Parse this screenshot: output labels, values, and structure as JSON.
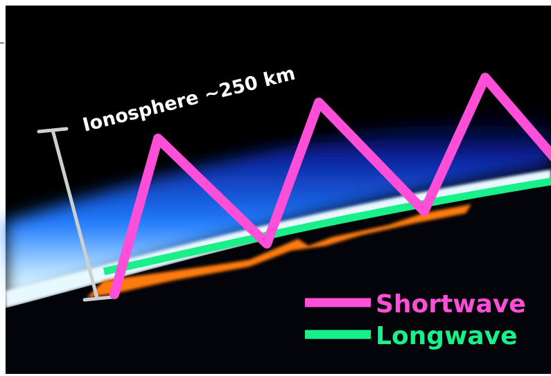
{
  "annotation": {
    "label": "Ionosphere ~250 km"
  },
  "legend": [
    {
      "label": "Shortwave"
    },
    {
      "label": "Longwave"
    }
  ]
}
